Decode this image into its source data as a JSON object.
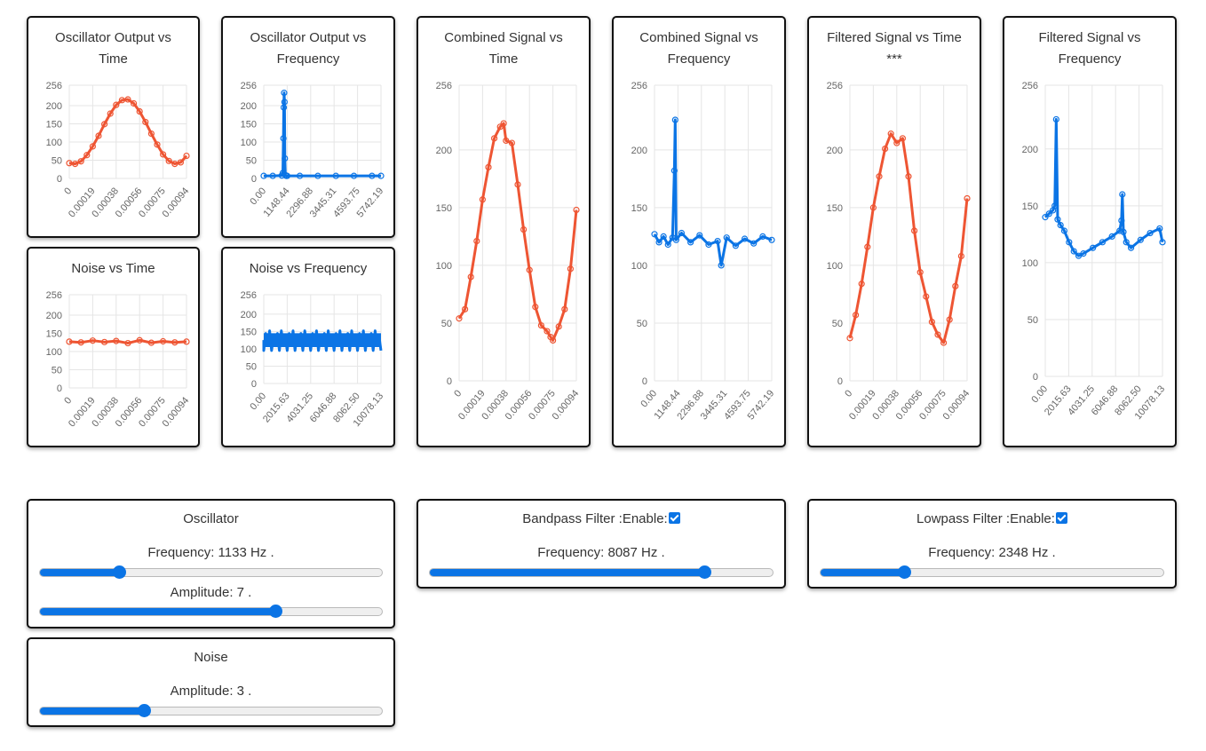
{
  "colors": {
    "red": "#ee5533",
    "blue": "#0b74e5",
    "grid": "#e5e5e5",
    "tick": "#666666"
  },
  "charts": {
    "osc_time": {
      "title": "Oscillator Output vs Time"
    },
    "osc_freq": {
      "title": "Oscillator Output vs Frequency"
    },
    "comb_time": {
      "title": "Combined Signal vs Time"
    },
    "comb_freq": {
      "title": "Combined Signal vs Frequency"
    },
    "filt_time": {
      "title": "Filtered Signal vs Time ***"
    },
    "filt_freq": {
      "title": "Filtered Signal vs Frequency"
    },
    "noise_time": {
      "title": "Noise vs Time"
    },
    "noise_freq": {
      "title": "Noise vs Frequency"
    }
  },
  "chart_data": [
    {
      "id": "osc_time",
      "type": "line",
      "title": "Oscillator Output vs Time",
      "color": "red",
      "y_ticks": [
        0,
        50,
        100,
        150,
        200,
        256
      ],
      "ylim": [
        0,
        256
      ],
      "x_ticks": [
        "0",
        "0.00019",
        "0.00038",
        "0.00056",
        "0.00075",
        "0.00094"
      ],
      "x": [
        0,
        5e-05,
        0.0001,
        0.00015,
        0.0002,
        0.00025,
        0.0003,
        0.00035,
        0.0004,
        0.00045,
        0.0005,
        0.00055,
        0.0006,
        0.00065,
        0.0007,
        0.00075,
        0.0008,
        0.00085,
        0.0009,
        0.00095,
        0.001
      ],
      "y": [
        42,
        40,
        47,
        64,
        88,
        117,
        149,
        178,
        202,
        215,
        217,
        206,
        184,
        155,
        123,
        93,
        66,
        48,
        40,
        44,
        62
      ]
    },
    {
      "id": "osc_freq",
      "type": "line",
      "title": "Oscillator Output vs Frequency",
      "color": "blue",
      "y_ticks": [
        0,
        50,
        100,
        150,
        200,
        256
      ],
      "ylim": [
        0,
        256
      ],
      "x_ticks": [
        "0.00",
        "1148.44",
        "2296.88",
        "3445.31",
        "4593.75",
        "5742.19"
      ],
      "x": [
        0,
        500,
        1000,
        1060,
        1090,
        1110,
        1130,
        1150,
        1170,
        1200,
        1250,
        1300,
        2000,
        3000,
        4000,
        5000,
        6000,
        6500
      ],
      "y": [
        7,
        7,
        8,
        15,
        110,
        195,
        235,
        210,
        55,
        9,
        7,
        7,
        7,
        7,
        7,
        7,
        7,
        7
      ]
    },
    {
      "id": "comb_time",
      "type": "line",
      "title": "Combined Signal vs Time",
      "color": "red",
      "y_ticks": [
        0,
        50,
        100,
        150,
        200,
        256
      ],
      "ylim": [
        0,
        256
      ],
      "x_ticks": [
        "0",
        "0.00019",
        "0.00038",
        "0.00056",
        "0.00075",
        "0.00094"
      ],
      "x": [
        0,
        5e-05,
        0.0001,
        0.00015,
        0.0002,
        0.00025,
        0.0003,
        0.00035,
        0.00038,
        0.0004,
        0.00045,
        0.0005,
        0.00055,
        0.0006,
        0.00065,
        0.0007,
        0.00075,
        0.00078,
        0.0008,
        0.00085,
        0.0009,
        0.00095,
        0.001
      ],
      "y": [
        54,
        62,
        90,
        121,
        157,
        185,
        210,
        220,
        223,
        208,
        206,
        170,
        131,
        96,
        64,
        48,
        43,
        38,
        35,
        47,
        62,
        97,
        148
      ]
    },
    {
      "id": "comb_freq",
      "type": "line",
      "title": "Combined Signal vs Frequency",
      "color": "blue",
      "y_ticks": [
        0,
        50,
        100,
        150,
        200,
        256
      ],
      "ylim": [
        0,
        256
      ],
      "x_ticks": [
        "0.00",
        "1148.44",
        "2296.88",
        "3445.31",
        "4593.75",
        "5742.19"
      ],
      "x": [
        0,
        250,
        500,
        750,
        1000,
        1100,
        1148,
        1200,
        1500,
        2000,
        2500,
        3000,
        3500,
        3700,
        4000,
        4500,
        5000,
        5500,
        6000,
        6500
      ],
      "y": [
        127,
        120,
        125,
        118,
        124,
        182,
        226,
        122,
        128,
        120,
        126,
        118,
        121,
        100,
        124,
        117,
        123,
        119,
        125,
        122
      ]
    },
    {
      "id": "filt_time",
      "type": "line",
      "title": "Filtered Signal vs Time ***",
      "color": "red",
      "y_ticks": [
        0,
        50,
        100,
        150,
        200,
        256
      ],
      "ylim": [
        0,
        256
      ],
      "x_ticks": [
        "0",
        "0.00019",
        "0.00038",
        "0.00056",
        "0.00075",
        "0.00094"
      ],
      "x": [
        0,
        5e-05,
        0.0001,
        0.00015,
        0.0002,
        0.00025,
        0.0003,
        0.00035,
        0.0004,
        0.00045,
        0.0005,
        0.00055,
        0.0006,
        0.00065,
        0.0007,
        0.00075,
        0.0008,
        0.00085,
        0.0009,
        0.00095,
        0.001
      ],
      "y": [
        37,
        57,
        84,
        116,
        150,
        177,
        201,
        214,
        206,
        210,
        177,
        130,
        94,
        73,
        51,
        40,
        33,
        53,
        82,
        108,
        158
      ]
    },
    {
      "id": "filt_freq",
      "type": "line",
      "title": "Filtered Signal vs Frequency",
      "color": "blue",
      "y_ticks": [
        0,
        50,
        100,
        150,
        200,
        256
      ],
      "ylim": [
        0,
        256
      ],
      "x_ticks": [
        "0.00",
        "2015.63",
        "4031.25",
        "6046.88",
        "8062.50",
        "10078.13"
      ],
      "x": [
        0,
        400,
        800,
        1000,
        1150,
        1300,
        1600,
        2000,
        2500,
        3000,
        3500,
        4000,
        5000,
        6000,
        7000,
        7800,
        8000,
        8087,
        8200,
        8500,
        9000,
        10000,
        11000,
        12000,
        12300
      ],
      "y": [
        140,
        143,
        146,
        150,
        226,
        138,
        133,
        128,
        118,
        110,
        106,
        108,
        113,
        118,
        123,
        128,
        137,
        160,
        127,
        118,
        113,
        120,
        126,
        130,
        118
      ]
    },
    {
      "id": "noise_time",
      "type": "line",
      "title": "Noise vs Time",
      "color": "red",
      "y_ticks": [
        0,
        50,
        100,
        150,
        200,
        256
      ],
      "ylim": [
        0,
        256
      ],
      "x_ticks": [
        "0",
        "0.00019",
        "0.00038",
        "0.00056",
        "0.00075",
        "0.00094"
      ],
      "x": [
        0,
        0.0001,
        0.0002,
        0.0003,
        0.0004,
        0.0005,
        0.0006,
        0.0007,
        0.0008,
        0.0009,
        0.001
      ],
      "y": [
        127,
        125,
        130,
        126,
        129,
        123,
        131,
        124,
        128,
        125,
        127
      ]
    },
    {
      "id": "noise_freq",
      "type": "area",
      "title": "Noise vs Frequency",
      "color": "blue",
      "y_ticks": [
        0,
        50,
        100,
        150,
        200,
        256
      ],
      "ylim": [
        0,
        256
      ],
      "x_ticks": [
        "0.00",
        "2015.63",
        "4031.25",
        "6046.88",
        "8062.50",
        "10078.13"
      ],
      "x": [
        0,
        12300
      ],
      "y": [
        125,
        125
      ],
      "band": [
        95,
        152
      ]
    }
  ],
  "controls": {
    "oscillator": {
      "title": "Oscillator",
      "freq_label": "Frequency: 1133 Hz .",
      "freq_value": 0.235,
      "amp_label": "Amplitude: 7 .",
      "amp_value": 0.69
    },
    "noise": {
      "title": "Noise",
      "amp_label": "Amplitude: 3 .",
      "amp_value": 0.307
    },
    "bandpass": {
      "title": "Bandpass Filter :Enable:",
      "enabled": true,
      "freq_label": "Frequency: 8087 Hz .",
      "freq_value": 0.803
    },
    "lowpass": {
      "title": "Lowpass Filter :Enable:",
      "enabled": true,
      "freq_label": "Frequency: 2348 Hz .",
      "freq_value": 0.246
    }
  }
}
